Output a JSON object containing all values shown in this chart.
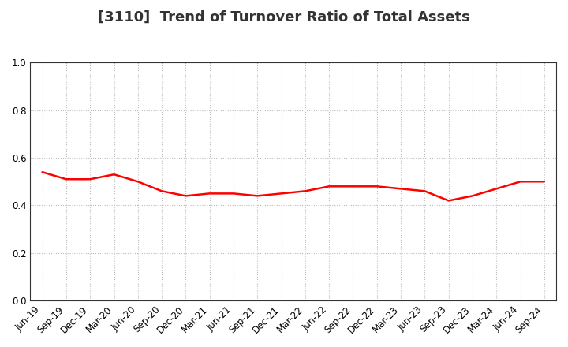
{
  "title": "[3110]  Trend of Turnover Ratio of Total Assets",
  "x_labels": [
    "Jun-19",
    "Sep-19",
    "Dec-19",
    "Mar-20",
    "Jun-20",
    "Sep-20",
    "Dec-20",
    "Mar-21",
    "Jun-21",
    "Sep-21",
    "Dec-21",
    "Mar-22",
    "Jun-22",
    "Sep-22",
    "Dec-22",
    "Mar-23",
    "Jun-23",
    "Sep-23",
    "Dec-23",
    "Mar-24",
    "Jun-24",
    "Sep-24"
  ],
  "y_values": [
    0.54,
    0.51,
    0.51,
    0.53,
    0.5,
    0.46,
    0.44,
    0.45,
    0.45,
    0.44,
    0.45,
    0.46,
    0.48,
    0.48,
    0.48,
    0.47,
    0.46,
    0.42,
    0.44,
    0.47,
    0.5,
    0.5
  ],
  "line_color": "#FF0000",
  "line_width": 1.8,
  "ylim": [
    0.0,
    1.0
  ],
  "yticks": [
    0.0,
    0.2,
    0.4,
    0.6,
    0.8,
    1.0
  ],
  "title_fontsize": 13,
  "tick_fontsize": 8.5,
  "title_color": "#333333",
  "background_color": "#FFFFFF",
  "grid_color": "#BBBBBB",
  "spine_color": "#333333"
}
